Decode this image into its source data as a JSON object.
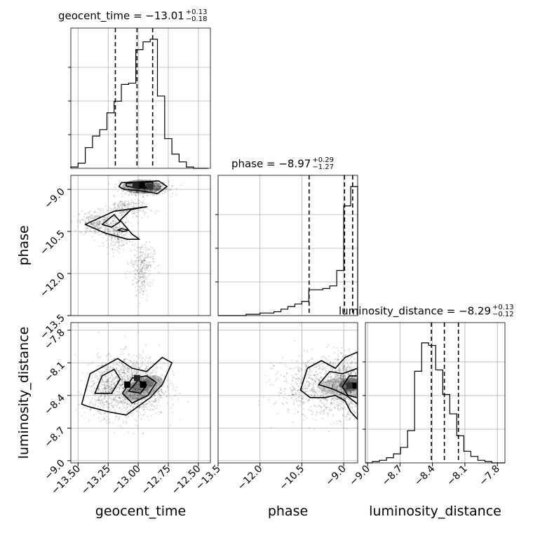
{
  "chart_data": {
    "type": "corner",
    "params": [
      {
        "name": "geocent_time",
        "median": "−13.01",
        "upper": "+0.13",
        "lower": "−0.18",
        "title_eq": "geocent_time = −13.01",
        "xlabel": "geocent_time",
        "range": [
          -13.56,
          -12.4
        ],
        "ticks": [
          "−13.50",
          "−13.25",
          "−13.00",
          "−12.75",
          "−12.50"
        ],
        "tick_values": [
          -13.5,
          -13.25,
          -13.0,
          -12.75,
          -12.5
        ],
        "quantiles": [
          -13.19,
          -13.01,
          -12.88
        ],
        "hist_edges": [
          -13.56,
          -13.5,
          -13.44,
          -13.38,
          -13.32,
          -13.26,
          -13.2,
          -13.14,
          -13.08,
          -13.02,
          -12.96,
          -12.9,
          -12.84,
          -12.78,
          -12.72,
          -12.66,
          -12.6,
          -12.54,
          -12.48,
          -12.42
        ],
        "hist": [
          0.01,
          0.04,
          0.16,
          0.25,
          0.3,
          0.43,
          0.52,
          0.65,
          0.66,
          0.92,
          0.98,
          1.0,
          0.56,
          0.23,
          0.11,
          0.05,
          0.01,
          0.0,
          0.0
        ]
      },
      {
        "name": "phase",
        "median": "−8.97",
        "upper": "+0.29",
        "lower": "−1.27",
        "title_eq": "phase = −8.97",
        "xlabel": "phase",
        "ylabel": "phase",
        "range": [
          -13.5,
          -8.5
        ],
        "ticks": [
          "−13.5",
          "−12.0",
          "−10.5",
          "−9.0"
        ],
        "tick_values": [
          -13.5,
          -12.0,
          -10.5,
          -9.0
        ],
        "quantiles": [
          -10.24,
          -8.97,
          -8.68
        ],
        "hist_edges": [
          -13.5,
          -13.25,
          -13.0,
          -12.75,
          -12.5,
          -12.25,
          -12.0,
          -11.75,
          -11.5,
          -11.25,
          -11.0,
          -10.75,
          -10.5,
          -10.25,
          -10.0,
          -9.75,
          -9.5,
          -9.25,
          -9.0,
          -8.75,
          -8.5
        ],
        "hist": [
          0.0,
          0.0,
          0.0,
          0.0,
          0.01,
          0.01,
          0.02,
          0.02,
          0.03,
          0.05,
          0.07,
          0.09,
          0.11,
          0.2,
          0.2,
          0.21,
          0.23,
          0.35,
          0.85,
          1.0
        ]
      },
      {
        "name": "luminosity_distance",
        "median": "−8.29",
        "upper": "+0.13",
        "lower": "−0.12",
        "title_eq": "luminosity_distance = −8.29",
        "xlabel": "luminosity_distance",
        "ylabel": "luminosity_distance",
        "range": [
          -9.02,
          -7.73
        ],
        "ticks": [
          "−9.0",
          "−8.7",
          "−8.4",
          "−8.1",
          "−7.8"
        ],
        "tick_values": [
          -9.0,
          -8.7,
          -8.4,
          -8.1,
          -7.8
        ],
        "quantiles": [
          -8.41,
          -8.29,
          -8.16
        ],
        "hist_edges": [
          -9.02,
          -8.955,
          -8.89,
          -8.825,
          -8.76,
          -8.695,
          -8.63,
          -8.565,
          -8.5,
          -8.435,
          -8.37,
          -8.305,
          -8.24,
          -8.175,
          -8.11,
          -8.045,
          -7.98,
          -7.915,
          -7.85,
          -7.785,
          -7.73
        ],
        "hist": [
          0.0,
          0.01,
          0.02,
          0.04,
          0.07,
          0.12,
          0.25,
          0.71,
          0.93,
          0.91,
          0.72,
          0.53,
          0.38,
          0.21,
          0.09,
          0.05,
          0.02,
          0.01,
          0.0,
          0.0
        ]
      }
    ]
  }
}
